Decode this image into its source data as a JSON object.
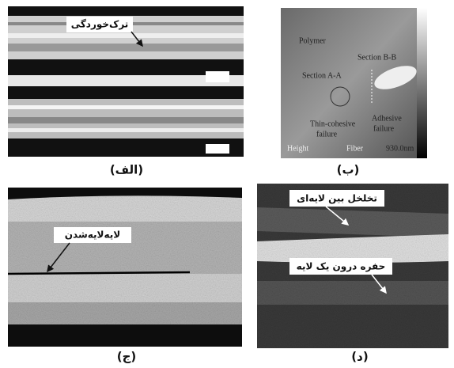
{
  "panels": [
    {
      "caption": "(الف)",
      "labels": [
        "ترک‌خوردگی"
      ]
    },
    {
      "caption": "(ب)",
      "labels": [
        "Polymer",
        "Section B-B",
        "Section A-A",
        "Thin-cohesive",
        "failure",
        "Adhesive",
        "failure",
        "Height",
        "Fiber",
        "930.0nm"
      ]
    },
    {
      "caption": "(ج)",
      "labels": [
        "لایه‌لایه‌شدن"
      ]
    },
    {
      "caption": "(د)",
      "labels": [
        "تخلخل بین لایه‌ای",
        "حفره درون یک لایه"
      ]
    }
  ]
}
